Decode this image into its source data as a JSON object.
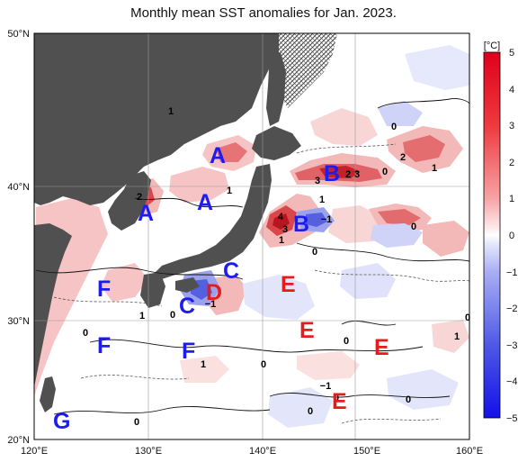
{
  "title": "Monthly mean SST anomalies for Jan. 2023.",
  "colors": {
    "blue_zone": "#1c1cf0",
    "red_zone": "#e81b1b",
    "land": "#505050",
    "warm_strong": "#c8102e",
    "cold_strong": "#2b3bd6"
  },
  "lat_labels": [
    "50°N",
    "40°N",
    "30°N",
    "20°N"
  ],
  "lon_labels": [
    "120°E",
    "130°E",
    "140°E",
    "150°E",
    "160°E"
  ],
  "colorbar": {
    "unit": "[°C]",
    "ticks": [
      "5",
      "4",
      "3",
      "2",
      "1",
      "0",
      "−1",
      "−2",
      "−3",
      "−4",
      "−5"
    ]
  },
  "zone_labels": [
    {
      "text": "A",
      "color": "blue"
    },
    {
      "text": "A",
      "color": "blue"
    },
    {
      "text": "A",
      "color": "blue"
    },
    {
      "text": "B",
      "color": "blue"
    },
    {
      "text": "B",
      "color": "blue"
    },
    {
      "text": "C",
      "color": "blue"
    },
    {
      "text": "C",
      "color": "blue"
    },
    {
      "text": "D",
      "color": "red"
    },
    {
      "text": "E",
      "color": "red"
    },
    {
      "text": "E",
      "color": "red"
    },
    {
      "text": "E",
      "color": "red"
    },
    {
      "text": "E",
      "color": "red"
    },
    {
      "text": "F",
      "color": "blue"
    },
    {
      "text": "F",
      "color": "blue"
    },
    {
      "text": "F",
      "color": "blue"
    },
    {
      "text": "G",
      "color": "blue"
    }
  ],
  "contour_labels": [
    "2",
    "1",
    "0",
    "0",
    "2",
    "1",
    "3",
    "2",
    "3",
    "0",
    "4",
    "3",
    "1",
    "−1",
    "1",
    "0",
    "0",
    "1",
    "0",
    "−1",
    "0",
    "0",
    "0",
    "1",
    "1",
    "0",
    "−1",
    "0",
    "0",
    "1",
    "0"
  ]
}
